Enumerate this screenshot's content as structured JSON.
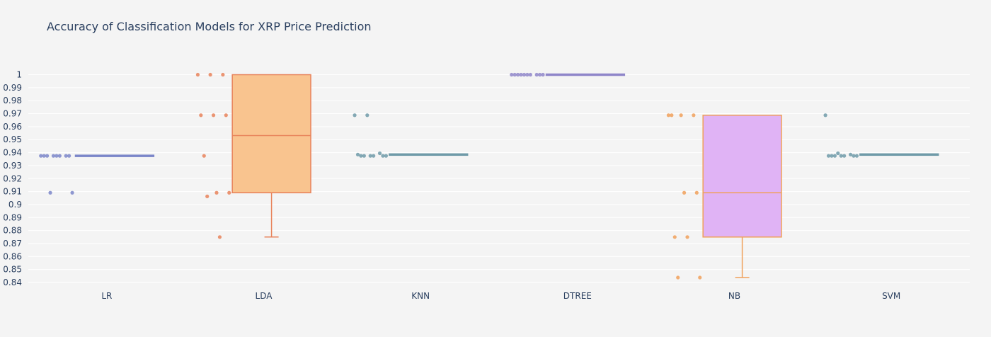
{
  "chart_data": {
    "type": "box",
    "title": "Accuracy of Classification Models for XRP Price Prediction",
    "xlabel": "",
    "ylabel": "",
    "ylim": [
      0.84,
      1.0
    ],
    "yticks": [
      0.84,
      0.85,
      0.86,
      0.87,
      0.88,
      0.89,
      0.9,
      0.91,
      0.92,
      0.93,
      0.94,
      0.95,
      0.96,
      0.97,
      0.98,
      0.99,
      1
    ],
    "grid": true,
    "legend": "none",
    "categories": [
      "LR",
      "LDA",
      "KNN",
      "DTREE",
      "NB",
      "SVM"
    ],
    "series": [
      {
        "category": "LR",
        "color": "#7b86c9",
        "fill": "none",
        "box": {
          "q1": 0.9375,
          "median": 0.9375,
          "q3": 0.9375,
          "lower_fence": 0.9375,
          "upper_fence": 0.9375
        },
        "points": [
          0.9375,
          0.9375,
          0.9375,
          0.9375,
          0.9375,
          0.9375,
          0.9375,
          0.9375,
          0.9091,
          0.9091
        ]
      },
      {
        "category": "LDA",
        "color": "#e8825a",
        "fill": "#f9c48f",
        "box": {
          "q1": 0.9091,
          "median": 0.9531,
          "q3": 1.0,
          "lower_fence": 0.875,
          "upper_fence": 1.0
        },
        "points": [
          1.0,
          1.0,
          1.0,
          0.9688,
          0.9688,
          0.9688,
          0.9375,
          0.9091,
          0.9091,
          0.9063,
          0.875
        ]
      },
      {
        "category": "KNN",
        "color": "#6f9aa8",
        "fill": "none",
        "box": {
          "q1": 0.9385,
          "median": 0.9385,
          "q3": 0.9385,
          "lower_fence": 0.9385,
          "upper_fence": 0.9385
        },
        "points": [
          0.9688,
          0.9688,
          0.9395,
          0.9385,
          0.9375,
          0.9375,
          0.9375,
          0.9375,
          0.9375,
          0.9375
        ]
      },
      {
        "category": "DTREE",
        "color": "#8f86c9",
        "fill": "none",
        "box": {
          "q1": 1.0,
          "median": 1.0,
          "q3": 1.0,
          "lower_fence": 1.0,
          "upper_fence": 1.0
        },
        "points": [
          1.0,
          1.0,
          1.0,
          1.0,
          1.0,
          1.0,
          1.0,
          1.0,
          1.0,
          1.0
        ]
      },
      {
        "category": "NB",
        "color": "#f0a05a",
        "fill": "#e0b3f5",
        "box": {
          "q1": 0.875,
          "median": 0.9091,
          "q3": 0.9688,
          "lower_fence": 0.8438,
          "upper_fence": 0.9688
        },
        "points": [
          0.9688,
          0.9688,
          0.9688,
          0.9688,
          0.9091,
          0.9091,
          0.875,
          0.875,
          0.8438,
          0.8438
        ]
      },
      {
        "category": "SVM",
        "color": "#6f9aa8",
        "fill": "none",
        "box": {
          "q1": 0.9385,
          "median": 0.9385,
          "q3": 0.9385,
          "lower_fence": 0.9385,
          "upper_fence": 0.9385
        },
        "points": [
          0.9688,
          0.9395,
          0.9385,
          0.9375,
          0.9375,
          0.9375,
          0.9375,
          0.9375,
          0.9375,
          0.9375
        ]
      }
    ]
  }
}
